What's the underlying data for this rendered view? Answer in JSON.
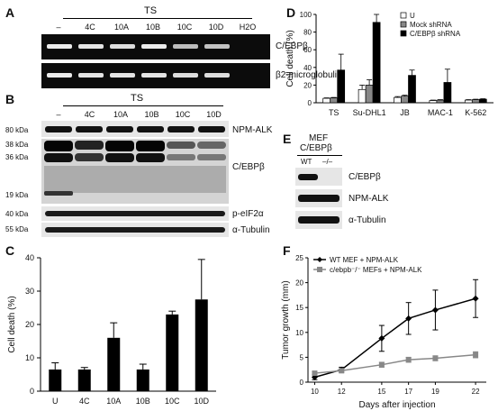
{
  "panelA": {
    "letter": "A",
    "group": "TS",
    "lanes": [
      "–",
      "4C",
      "10A",
      "10B",
      "10C",
      "10D",
      "H2O"
    ],
    "rows": [
      {
        "label": "C/EBPβ",
        "intensity": [
          0.85,
          0.8,
          0.75,
          0.85,
          0.5,
          0.55,
          0.0
        ]
      },
      {
        "label": "β2-microglobulin",
        "intensity": [
          0.85,
          0.8,
          0.8,
          0.8,
          0.75,
          0.75,
          0.0
        ]
      }
    ]
  },
  "panelB": {
    "letter": "B",
    "group": "TS",
    "lanes": [
      "–",
      "4C",
      "10A",
      "10B",
      "10C",
      "10D"
    ],
    "mw_markers": [
      "80 kDa",
      "38 kDa",
      "36 kDa",
      "19 kDa",
      "40 kDa",
      "55 kDa"
    ],
    "row_labels": [
      "NPM-ALK",
      "C/EBPβ",
      "p-eIF2α",
      "α-Tubulin"
    ]
  },
  "panelC": {
    "letter": "C",
    "chart_data": {
      "type": "bar",
      "categories": [
        "U",
        "4C",
        "10A",
        "10B",
        "10C",
        "10D"
      ],
      "values": [
        6.5,
        6.5,
        16,
        6.5,
        23,
        27.5
      ],
      "errors": [
        2,
        0.6,
        4.5,
        1.6,
        1,
        12
      ],
      "ylabel": "Cell death (%)",
      "ylim": [
        0,
        40
      ],
      "yticks": [
        0,
        10,
        20,
        30,
        40
      ],
      "bar_color": "#000000"
    }
  },
  "panelD": {
    "letter": "D",
    "chart_data": {
      "type": "bar",
      "categories": [
        "TS",
        "Su-DHL1",
        "JB",
        "MAC-1",
        "K-562"
      ],
      "series": [
        {
          "name": "U",
          "values": [
            5,
            15,
            6,
            2.5,
            3
          ],
          "errors": [
            0.5,
            5,
            1,
            0.5,
            0.5
          ],
          "color": "#ffffff"
        },
        {
          "name": "Mock shRNA",
          "values": [
            5.5,
            20,
            7.5,
            3,
            3.5
          ],
          "errors": [
            0.5,
            6,
            1,
            0.5,
            0.5
          ],
          "color": "#888888"
        },
        {
          "name": "C/EBPβ shRNA",
          "values": [
            37,
            91,
            31,
            23,
            4
          ],
          "errors": [
            18,
            9,
            6,
            15,
            0.5
          ],
          "color": "#000000"
        }
      ],
      "ylabel": "Cell death (%)",
      "ylim": [
        0,
        100
      ],
      "yticks": [
        0,
        20,
        40,
        60,
        80,
        100
      ],
      "legend": "top-right"
    }
  },
  "panelE": {
    "letter": "E",
    "header_line1": "MEF",
    "header_line2": "C/EBPβ",
    "lanes": [
      "WT",
      "–/–"
    ],
    "row_labels": [
      "C/EBPβ",
      "NPM-ALK",
      "α-Tubulin"
    ]
  },
  "panelF": {
    "letter": "F",
    "chart_data": {
      "type": "line",
      "x": [
        10,
        12,
        15,
        17,
        19,
        22
      ],
      "xticks": [
        10,
        12,
        15,
        17,
        19,
        22
      ],
      "series": [
        {
          "name": "WT MEF + NPM-ALK",
          "values": [
            1,
            2.5,
            8.8,
            12.8,
            14.5,
            16.8
          ],
          "errors": [
            0.5,
            0.5,
            2.6,
            3.2,
            4,
            3.8
          ],
          "color": "#000000",
          "marker": "diamond"
        },
        {
          "name": "c/ebpb⁻/⁻ MEFs + NPM-ALK",
          "values": [
            1.8,
            2.3,
            3.5,
            4.5,
            4.8,
            5.5
          ],
          "errors": [
            0.3,
            0.3,
            0.5,
            0.5,
            0.5,
            0.6
          ],
          "color": "#888888",
          "marker": "square"
        }
      ],
      "xlabel": "Days after injection",
      "ylabel": "Tumor growth (mm)",
      "ylim": [
        0,
        25
      ],
      "yticks": [
        0,
        5,
        10,
        15,
        20,
        25
      ],
      "legend": "top-left"
    }
  }
}
